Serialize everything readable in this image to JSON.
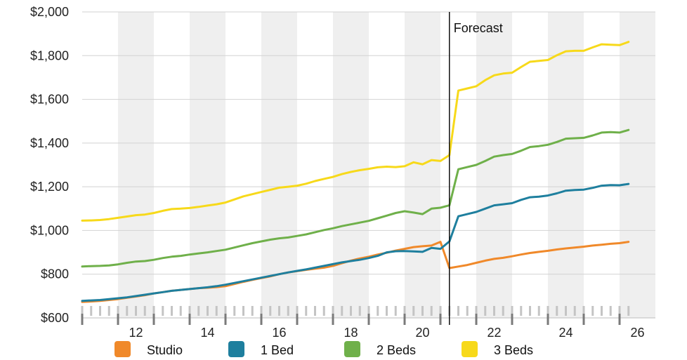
{
  "chart_data": {
    "type": "line",
    "title": "",
    "xlabel": "",
    "ylabel": "",
    "xlim": [
      10.5,
      25.75
    ],
    "ylim": [
      600,
      2000
    ],
    "x_ticks": [
      "12",
      "14",
      "16",
      "18",
      "20",
      "22",
      "24",
      "26"
    ],
    "y_ticks": [
      "$600",
      "$800",
      "$1,000",
      "$1,200",
      "$1,400",
      "$1,600",
      "$1,800",
      "$2,000"
    ],
    "grid": "horizontal lines, alternating vertical bands",
    "legend_position": "bottom",
    "annotation": {
      "label": "Forecast",
      "x": 20.75
    },
    "x": [
      10.5,
      10.75,
      11,
      11.25,
      11.5,
      11.75,
      12,
      12.25,
      12.5,
      12.75,
      13,
      13.25,
      13.5,
      13.75,
      14,
      14.25,
      14.5,
      14.75,
      15,
      15.25,
      15.5,
      15.75,
      16,
      16.25,
      16.5,
      16.75,
      17,
      17.25,
      17.5,
      17.75,
      18,
      18.25,
      18.5,
      18.75,
      19,
      19.25,
      19.5,
      19.75,
      20,
      20.25,
      20.5,
      20.75,
      21,
      21.25,
      21.5,
      21.75,
      22,
      22.25,
      22.5,
      22.75,
      23,
      23.25,
      23.5,
      23.75,
      24,
      24.25,
      24.5,
      24.75,
      25,
      25.25,
      25.5,
      25.75
    ],
    "series": [
      {
        "name": "Studio",
        "color": "#f0892a",
        "values": [
          673,
          675,
          678,
          682,
          686,
          692,
          698,
          704,
          712,
          718,
          724,
          728,
          732,
          736,
          738,
          741,
          745,
          755,
          765,
          774,
          782,
          790,
          800,
          808,
          814,
          820,
          825,
          830,
          838,
          850,
          862,
          872,
          880,
          890,
          898,
          908,
          916,
          924,
          928,
          931,
          948,
          828,
          835,
          842,
          852,
          862,
          870,
          875,
          882,
          890,
          897,
          902,
          907,
          913,
          918,
          922,
          926,
          931,
          935,
          939,
          942,
          948
        ]
      },
      {
        "name": "1 Bed",
        "color": "#1e7f9e",
        "values": [
          678,
          680,
          682,
          686,
          690,
          694,
          700,
          706,
          712,
          718,
          724,
          728,
          732,
          736,
          740,
          745,
          752,
          760,
          768,
          776,
          784,
          792,
          800,
          808,
          815,
          822,
          830,
          838,
          846,
          854,
          860,
          866,
          874,
          884,
          900,
          905,
          906,
          904,
          902,
          920,
          916,
          950,
          1065,
          1075,
          1085,
          1100,
          1115,
          1120,
          1125,
          1140,
          1152,
          1155,
          1160,
          1170,
          1182,
          1185,
          1187,
          1195,
          1205,
          1208,
          1207,
          1213
        ]
      },
      {
        "name": "2 Beds",
        "color": "#6fb04a",
        "values": [
          835,
          837,
          838,
          840,
          845,
          852,
          858,
          860,
          866,
          874,
          880,
          884,
          890,
          895,
          900,
          906,
          912,
          922,
          932,
          942,
          950,
          958,
          964,
          968,
          975,
          982,
          992,
          1002,
          1010,
          1020,
          1028,
          1036,
          1044,
          1056,
          1068,
          1080,
          1088,
          1082,
          1075,
          1100,
          1104,
          1115,
          1280,
          1290,
          1300,
          1318,
          1338,
          1345,
          1350,
          1365,
          1382,
          1386,
          1392,
          1405,
          1420,
          1422,
          1424,
          1435,
          1448,
          1450,
          1448,
          1460
        ]
      },
      {
        "name": "3 Beds",
        "color": "#f7d91a",
        "values": [
          1045,
          1046,
          1048,
          1052,
          1058,
          1064,
          1070,
          1073,
          1080,
          1090,
          1098,
          1100,
          1103,
          1108,
          1114,
          1120,
          1128,
          1142,
          1156,
          1166,
          1176,
          1186,
          1196,
          1200,
          1205,
          1214,
          1226,
          1236,
          1245,
          1258,
          1268,
          1276,
          1282,
          1289,
          1292,
          1290,
          1294,
          1312,
          1303,
          1322,
          1318,
          1345,
          1640,
          1650,
          1660,
          1688,
          1710,
          1718,
          1722,
          1748,
          1772,
          1776,
          1780,
          1802,
          1820,
          1822,
          1822,
          1838,
          1852,
          1850,
          1848,
          1863
        ]
      }
    ]
  }
}
